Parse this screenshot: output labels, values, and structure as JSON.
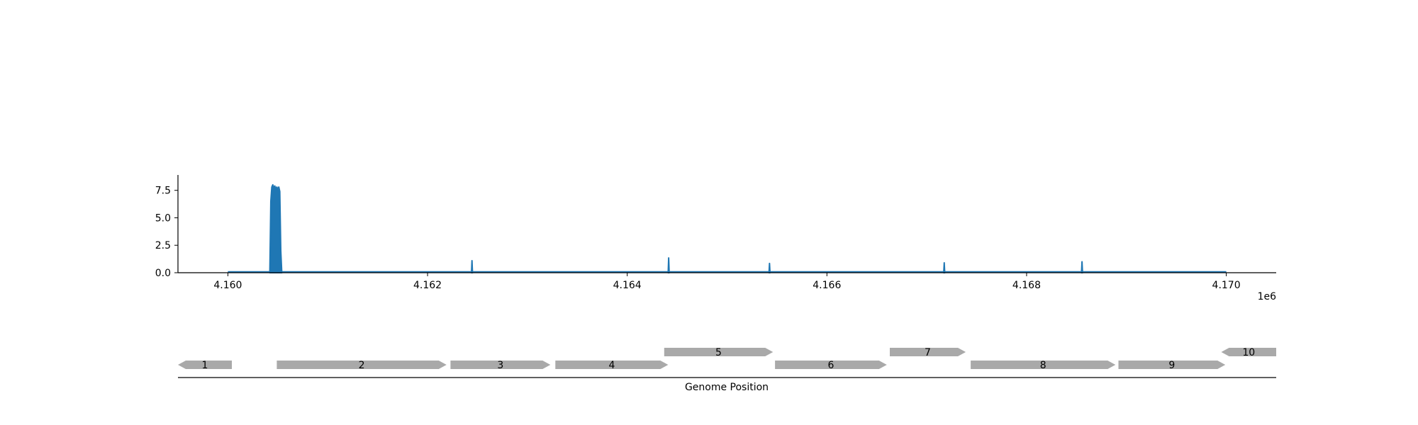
{
  "chart_data": [
    {
      "type": "area",
      "title": "",
      "xlabel": "",
      "ylabel": "",
      "x_offset_label": "1e6",
      "x_ticks": [
        4.16,
        4.162,
        4.164,
        4.166,
        4.168,
        4.17
      ],
      "x_tick_labels": [
        "4.160",
        "4.162",
        "4.164",
        "4.166",
        "4.168",
        "4.170"
      ],
      "y_ticks": [
        0.0,
        2.5,
        5.0,
        7.5
      ],
      "y_tick_labels": [
        "0.0",
        "2.5",
        "5.0",
        "7.5"
      ],
      "xlim": [
        4159500,
        4170500
      ],
      "ylim": [
        0,
        8.9
      ],
      "grid": false,
      "series": [
        {
          "color": "#1f77b4",
          "baseline": [
            4160000,
            4170000
          ],
          "points": [
            [
              4160420,
              0
            ],
            [
              4160425,
              3.2
            ],
            [
              4160430,
              6.5
            ],
            [
              4160440,
              7.8
            ],
            [
              4160450,
              8.0
            ],
            [
              4160460,
              7.7
            ],
            [
              4160470,
              7.9
            ],
            [
              4160480,
              7.6
            ],
            [
              4160490,
              7.8
            ],
            [
              4160500,
              7.6
            ],
            [
              4160510,
              7.8
            ],
            [
              4160520,
              7.4
            ],
            [
              4160530,
              2.0
            ],
            [
              4160540,
              0
            ],
            [
              4162440,
              0
            ],
            [
              4162445,
              1.1
            ],
            [
              4162450,
              0
            ],
            [
              4164410,
              0
            ],
            [
              4164415,
              1.35
            ],
            [
              4164420,
              0
            ],
            [
              4165420,
              0
            ],
            [
              4165425,
              0.85
            ],
            [
              4165430,
              0
            ],
            [
              4167170,
              0
            ],
            [
              4167175,
              0.9
            ],
            [
              4167180,
              0
            ],
            [
              4168550,
              0
            ],
            [
              4168555,
              1.0
            ],
            [
              4168560,
              0
            ]
          ]
        }
      ]
    },
    {
      "type": "gene-track",
      "xlabel": "Genome Position",
      "xlim": [
        4159500,
        4170500
      ],
      "gene_color": "#a9a9a9",
      "genes": [
        {
          "label": "1",
          "start": 4159500,
          "end": 4160040,
          "strand": "-",
          "row": 0
        },
        {
          "label": "2",
          "start": 4160490,
          "end": 4162190,
          "strand": "+",
          "row": 0
        },
        {
          "label": "3",
          "start": 4162230,
          "end": 4163230,
          "strand": "+",
          "row": 0
        },
        {
          "label": "4",
          "start": 4163280,
          "end": 4164410,
          "strand": "+",
          "row": 0
        },
        {
          "label": "5",
          "start": 4164370,
          "end": 4165460,
          "strand": "+",
          "row": 1
        },
        {
          "label": "6",
          "start": 4165480,
          "end": 4166600,
          "strand": "+",
          "row": 0
        },
        {
          "label": "7",
          "start": 4166630,
          "end": 4167390,
          "strand": "+",
          "row": 1
        },
        {
          "label": "8",
          "start": 4167440,
          "end": 4168890,
          "strand": "+",
          "row": 0
        },
        {
          "label": "9",
          "start": 4168920,
          "end": 4169990,
          "strand": "+",
          "row": 0
        },
        {
          "label": "10",
          "start": 4169950,
          "end": 4170500,
          "strand": "-",
          "row": 1
        }
      ]
    }
  ]
}
